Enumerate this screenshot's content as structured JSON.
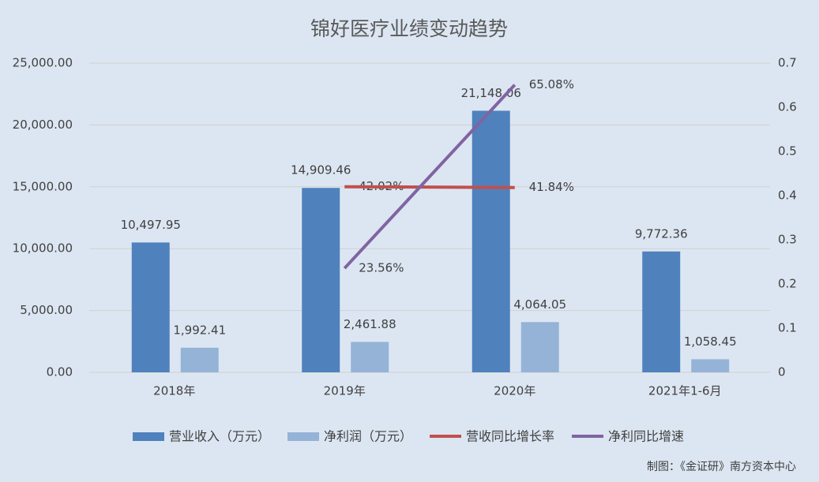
{
  "chart_data": {
    "type": "bar-line",
    "title": "锦好医疗业绩变动趋势",
    "source": "制图：《金证研》南方资本中心",
    "categories": [
      "2018年",
      "2019年",
      "2020年",
      "2021年1-6月"
    ],
    "series": [
      {
        "name": "营业收入（万元）",
        "type": "bar",
        "color": "#4f81bd",
        "values": [
          10497.95,
          14909.46,
          21148.06,
          9772.36
        ],
        "value_labels": [
          "10,497.95",
          "14,909.46",
          "21,148.06",
          "9,772.36"
        ]
      },
      {
        "name": "净利润（万元）",
        "type": "bar",
        "color": "#95b3d7",
        "values": [
          1992.41,
          2461.88,
          4064.05,
          1058.45
        ],
        "value_labels": [
          "1,992.41",
          "2,461.88",
          "4,064.05",
          "1,058.45"
        ]
      },
      {
        "name": "营收同比增长率",
        "type": "line",
        "axis": "y2",
        "color": "#c0504d",
        "values": [
          null,
          0.4202,
          0.4184,
          null
        ],
        "value_labels": [
          null,
          "42.02%",
          "41.84%",
          null
        ]
      },
      {
        "name": "净利同比增速",
        "type": "line",
        "axis": "y2",
        "color": "#8064a2",
        "values": [
          null,
          0.2356,
          0.6508,
          null
        ],
        "value_labels": [
          null,
          "23.56%",
          "65.08%",
          null
        ]
      }
    ],
    "ylim": [
      0,
      25000
    ],
    "yticks": [
      {
        "value": 0,
        "label": "0.00"
      },
      {
        "value": 5000,
        "label": "5,000.00"
      },
      {
        "value": 10000,
        "label": "10,000.00"
      },
      {
        "value": 15000,
        "label": "15,000.00"
      },
      {
        "value": 20000,
        "label": "20,000.00"
      },
      {
        "value": 25000,
        "label": "25,000.00"
      }
    ],
    "y2lim": [
      0,
      0.7
    ],
    "y2ticks": [
      0,
      0.1,
      0.2,
      0.3,
      0.4,
      0.5,
      0.6,
      0.7
    ],
    "grid": true,
    "legend": "bottom"
  }
}
